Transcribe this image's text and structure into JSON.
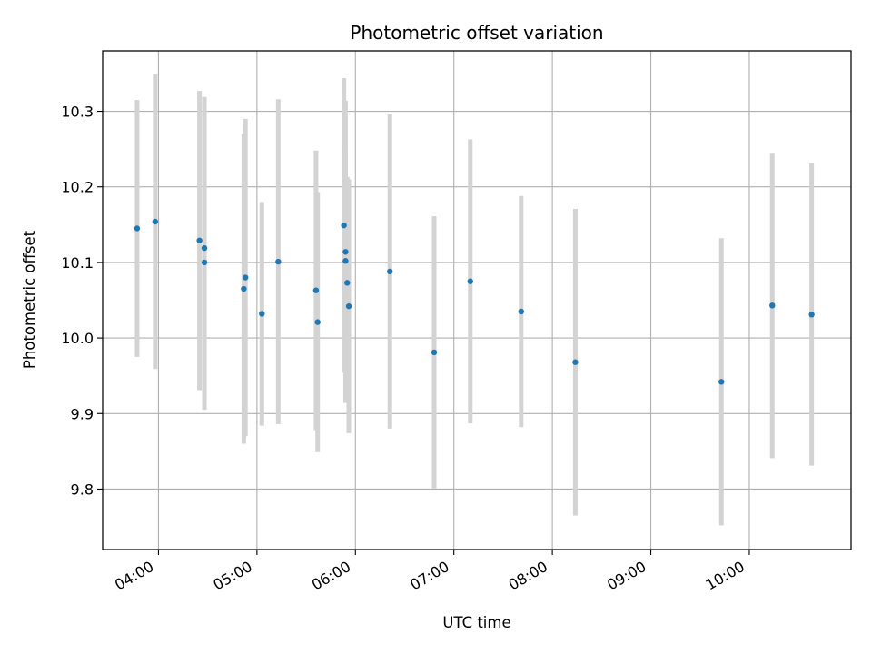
{
  "chart_data": {
    "type": "scatter",
    "title": "Photometric offset variation",
    "xlabel": "UTC time",
    "ylabel": "Photometric offset",
    "x_unit": "UTC hours",
    "xlim": [
      "03:26",
      "11:02"
    ],
    "ylim": [
      9.72,
      10.38
    ],
    "grid": true,
    "x_ticks": [
      "04:00",
      "05:00",
      "06:00",
      "07:00",
      "08:00",
      "09:00",
      "10:00"
    ],
    "y_ticks": [
      "9.8",
      "9.9",
      "10.0",
      "10.1",
      "10.2",
      "10.3"
    ],
    "colors": {
      "points": "#1f77b4",
      "errorbars": "#d3d3d3",
      "grid": "#b0b0b0"
    },
    "points": [
      {
        "x": "03:47",
        "y": 10.145,
        "yerr": 0.17
      },
      {
        "x": "03:58",
        "y": 10.154,
        "yerr": 0.195
      },
      {
        "x": "04:25",
        "y": 10.129,
        "yerr": 0.198
      },
      {
        "x": "04:28",
        "y": 10.119,
        "yerr": 0.2
      },
      {
        "x": "04:28",
        "y": 10.1,
        "yerr": 0.195
      },
      {
        "x": "04:52",
        "y": 10.065,
        "yerr": 0.205
      },
      {
        "x": "04:53",
        "y": 10.08,
        "yerr": 0.21
      },
      {
        "x": "05:03",
        "y": 10.032,
        "yerr": 0.148
      },
      {
        "x": "05:13",
        "y": 10.101,
        "yerr": 0.215
      },
      {
        "x": "05:36",
        "y": 10.063,
        "yerr": 0.185
      },
      {
        "x": "05:37",
        "y": 10.021,
        "yerr": 0.172
      },
      {
        "x": "05:53",
        "y": 10.149,
        "yerr": 0.195
      },
      {
        "x": "05:54",
        "y": 10.114,
        "yerr": 0.2
      },
      {
        "x": "05:54",
        "y": 10.102,
        "yerr": 0.147
      },
      {
        "x": "05:55",
        "y": 10.073,
        "yerr": 0.14
      },
      {
        "x": "05:56",
        "y": 10.042,
        "yerr": 0.168
      },
      {
        "x": "06:21",
        "y": 10.088,
        "yerr": 0.208
      },
      {
        "x": "06:48",
        "y": 9.981,
        "yerr": 0.18
      },
      {
        "x": "07:10",
        "y": 10.075,
        "yerr": 0.188
      },
      {
        "x": "07:41",
        "y": 10.035,
        "yerr": 0.153
      },
      {
        "x": "08:14",
        "y": 9.968,
        "yerr": 0.203
      },
      {
        "x": "09:43",
        "y": 9.942,
        "yerr": 0.19
      },
      {
        "x": "10:14",
        "y": 10.043,
        "yerr": 0.202
      },
      {
        "x": "10:38",
        "y": 10.031,
        "yerr": 0.2
      }
    ]
  }
}
